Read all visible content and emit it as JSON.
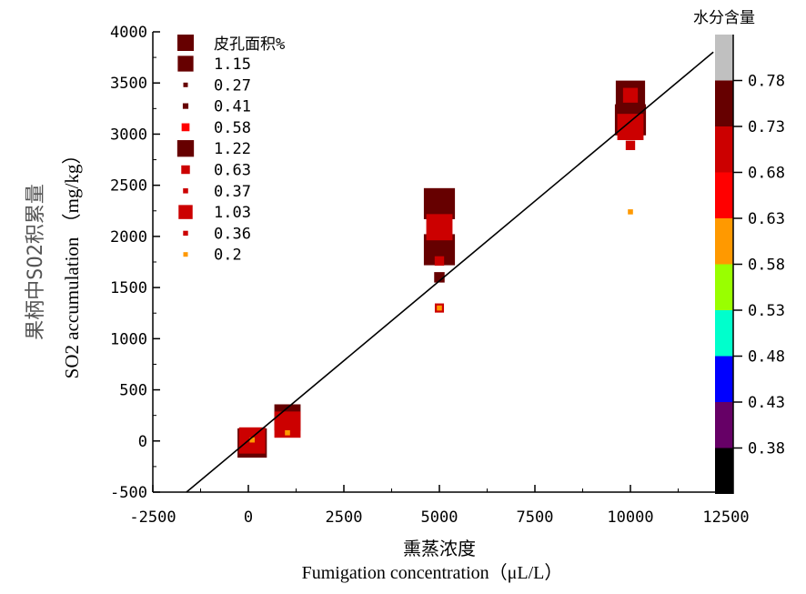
{
  "chart_data": {
    "type": "scatter",
    "xlabel_cn": "熏蒸浓度",
    "xlabel_en": "Fumigation concentration（μL/L）",
    "ylabel_cn": "果柄中SO2积累量",
    "ylabel_en": "SO2 accumulation （mg/kg）",
    "xlim": [
      -2500,
      12500
    ],
    "ylim": [
      -500,
      4000
    ],
    "xticks": [
      "-2500",
      "0",
      "2500",
      "5000",
      "7500",
      "10000",
      "12500"
    ],
    "xtick_values": [
      -2500,
      0,
      2500,
      5000,
      7500,
      10000,
      12500
    ],
    "yticks": [
      "-500",
      "0",
      "500",
      "1000",
      "1500",
      "2000",
      "2500",
      "3000",
      "3500",
      "4000"
    ],
    "ytick_values": [
      -500,
      0,
      500,
      1000,
      1500,
      2000,
      2500,
      3000,
      3500,
      4000
    ],
    "fit_line": {
      "slope": 0.312,
      "intercept": 5,
      "x_range": [
        -1620,
        12170
      ]
    },
    "legend": {
      "title": "皮孔面积%",
      "title_color": "#660000",
      "entries": [
        {
          "label": "1.15",
          "color": "#660000",
          "size": 1.15
        },
        {
          "label": "0.27",
          "color": "#660000",
          "size": 0.27
        },
        {
          "label": "0.41",
          "color": "#660000",
          "size": 0.41
        },
        {
          "label": "0.58",
          "color": "#FF0000",
          "size": 0.58
        },
        {
          "label": "1.22",
          "color": "#660000",
          "size": 1.22
        },
        {
          "label": "0.63",
          "color": "#CC0000",
          "size": 0.63
        },
        {
          "label": "0.37",
          "color": "#CC0000",
          "size": 0.37
        },
        {
          "label": "1.03",
          "color": "#CC0000",
          "size": 1.03
        },
        {
          "label": "0.36",
          "color": "#CC0000",
          "size": 0.36
        },
        {
          "label": "0.2",
          "color": "#FF9900",
          "size": 0.2
        }
      ]
    },
    "colorbar": {
      "title": "水分含量",
      "range": [
        0.33,
        0.83
      ],
      "bins": [
        {
          "from": 0.33,
          "to": 0.38,
          "color": "#000000"
        },
        {
          "from": 0.38,
          "to": 0.43,
          "color": "#660066"
        },
        {
          "from": 0.43,
          "to": 0.48,
          "color": "#0000FF"
        },
        {
          "from": 0.48,
          "to": 0.53,
          "color": "#00FFCC"
        },
        {
          "from": 0.53,
          "to": 0.58,
          "color": "#99FF00"
        },
        {
          "from": 0.58,
          "to": 0.63,
          "color": "#FF9900"
        },
        {
          "from": 0.63,
          "to": 0.68,
          "color": "#FF0000"
        },
        {
          "from": 0.68,
          "to": 0.73,
          "color": "#CC0000"
        },
        {
          "from": 0.73,
          "to": 0.78,
          "color": "#660000"
        },
        {
          "from": 0.78,
          "to": 0.83,
          "color": "#C0C0C0"
        }
      ],
      "ticks": [
        "0.38",
        "0.43",
        "0.48",
        "0.53",
        "0.58",
        "0.63",
        "0.68",
        "0.73",
        "0.78"
      ],
      "tick_values": [
        0.38,
        0.43,
        0.48,
        0.53,
        0.58,
        0.63,
        0.68,
        0.73,
        0.78
      ]
    },
    "points": [
      {
        "x": 100,
        "y": -20,
        "area": 1.15,
        "color": "#660000"
      },
      {
        "x": 100,
        "y": 5,
        "area": 1.03,
        "color": "#CC0000"
      },
      {
        "x": 100,
        "y": 10,
        "area": 0.2,
        "color": "#FF9900"
      },
      {
        "x": 1024,
        "y": 230,
        "area": 1.03,
        "color": "#660000"
      },
      {
        "x": 1024,
        "y": 160,
        "area": 1.03,
        "color": "#CC0000"
      },
      {
        "x": 1024,
        "y": 80,
        "area": 0.2,
        "color": "#FF9900"
      },
      {
        "x": 5000,
        "y": 2320,
        "area": 1.22,
        "color": "#660000"
      },
      {
        "x": 5000,
        "y": 1870,
        "area": 1.22,
        "color": "#660000"
      },
      {
        "x": 5000,
        "y": 2090,
        "area": 1.03,
        "color": "#CC0000"
      },
      {
        "x": 5000,
        "y": 1760,
        "area": 0.37,
        "color": "#CC0000"
      },
      {
        "x": 5000,
        "y": 1600,
        "area": 0.41,
        "color": "#660000"
      },
      {
        "x": 5000,
        "y": 1300,
        "area": 0.36,
        "color": "#CC0000"
      },
      {
        "x": 5000,
        "y": 1300,
        "area": 0.2,
        "color": "#FF9900"
      },
      {
        "x": 10000,
        "y": 3380,
        "area": 1.15,
        "color": "#660000"
      },
      {
        "x": 10000,
        "y": 3380,
        "area": 0.58,
        "color": "#CC0000"
      },
      {
        "x": 10000,
        "y": 3140,
        "area": 1.22,
        "color": "#660000"
      },
      {
        "x": 10000,
        "y": 3070,
        "area": 1.03,
        "color": "#CC0000"
      },
      {
        "x": 10000,
        "y": 2890,
        "area": 0.37,
        "color": "#CC0000"
      },
      {
        "x": 10000,
        "y": 2240,
        "area": 0.2,
        "color": "#FF9900"
      }
    ]
  }
}
